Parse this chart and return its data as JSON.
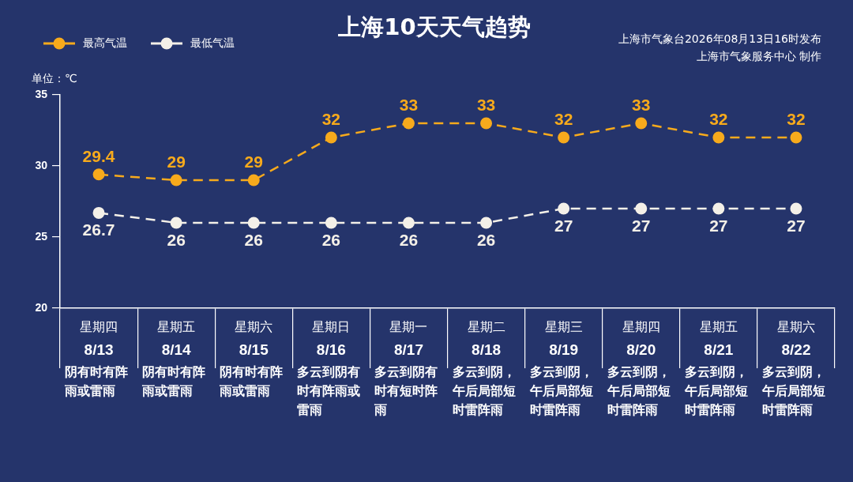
{
  "chart_data": {
    "type": "line",
    "title": "上海10天天气趋势",
    "ylabel": "单位：℃",
    "annotations": [
      "上海市气象台2026年08月13日16时发布",
      "上海市气象服务中心 制作"
    ],
    "categories": [
      "星期四\n8/13\n阴有时有阵雨或雷雨",
      "星期五\n8/14\n阴有时有阵雨或雷雨",
      "星期六\n8/15\n阴有时有阵雨或雷雨",
      "星期日\n8/16\n多云到阴有时有阵雨或雷雨",
      "星期一\n8/17\n多云到阴有时有短时阵雨",
      "星期二\n8/18\n多云到阴，午后局部短时雷阵雨",
      "星期三\n8/19\n多云到阴，午后局部短时雷阵雨",
      "星期四\n8/20\n多云到阴，午后局部短时雷阵雨",
      "星期五\n8/21\n多云到阴，午后局部短时雷阵雨",
      "星期六\n8/22\n多云到阴，午后局部短时雷阵雨"
    ],
    "series": [
      {
        "name": "最高气温",
        "color": "#f7aa1c",
        "values": [
          29.4,
          29,
          29,
          32,
          33,
          33,
          32,
          33,
          32,
          32
        ]
      },
      {
        "name": "最低气温",
        "color": "#f4f0e8",
        "values": [
          26.7,
          26,
          26,
          26,
          26,
          26,
          27,
          27,
          27,
          27
        ]
      }
    ],
    "ylim": [
      20,
      35
    ],
    "yticks": [
      20,
      25,
      30,
      35
    ],
    "grid": false,
    "legend": "top left",
    "marker": "circle",
    "line_style": "dashed",
    "data_labels": true
  }
}
